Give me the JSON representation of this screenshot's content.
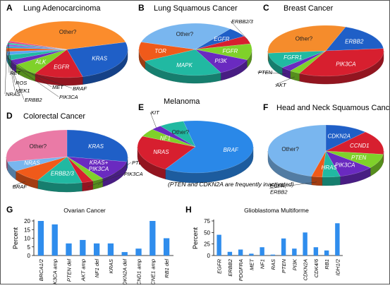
{
  "figure": {
    "panels": [
      {
        "letter": "A",
        "title": "Lung Adenocarcinoma",
        "slices": [
          {
            "label": "KRAS",
            "value": 25,
            "color": "#1f5fc7",
            "inside": true
          },
          {
            "label": "EGFR",
            "value": 13,
            "color": "#d71f2f",
            "inside": true
          },
          {
            "label": "ALK",
            "value": 7,
            "color": "#7fd12a",
            "inside": true
          },
          {
            "label": "BRAF",
            "value": 3,
            "color": "#6a2ac0",
            "inside": false
          },
          {
            "label": "PIK3CA",
            "value": 3,
            "color": "#21b9a2",
            "inside": false
          },
          {
            "label": "MET",
            "value": 2,
            "color": "#5aa5f0",
            "inside": false
          },
          {
            "label": "ERBB2",
            "value": 2,
            "color": "#f05a1a",
            "inside": false
          },
          {
            "label": "MEK1",
            "value": 1,
            "color": "#2aa8d6",
            "inside": false
          },
          {
            "label": "NRAS",
            "value": 1,
            "color": "#9a4dd8",
            "inside": false
          },
          {
            "label": "ROS",
            "value": 1,
            "color": "#35c4aa",
            "inside": false
          },
          {
            "label": "RET",
            "value": 1,
            "color": "#e0428c",
            "inside": false
          },
          {
            "label": "Other?",
            "value": 41,
            "color": "#fb8c2c",
            "inside": true
          }
        ]
      },
      {
        "letter": "B",
        "title": "Lung Squamous Cancer",
        "slices": [
          {
            "label": "EGFR",
            "value": 6,
            "color": "#1f5fc7",
            "inside": true
          },
          {
            "label": "ERBB2/3",
            "value": 5,
            "color": "#d71f2f",
            "inside": false
          },
          {
            "label": "FGFR",
            "value": 10,
            "color": "#7fd12a",
            "inside": true
          },
          {
            "label": "PI3K",
            "value": 11,
            "color": "#6a2ac0",
            "inside": true
          },
          {
            "label": "MAPK",
            "value": 25,
            "color": "#21b9a2",
            "inside": true
          },
          {
            "label": "TOR",
            "value": 12,
            "color": "#f05a1a",
            "inside": true
          },
          {
            "label": "Other?",
            "value": 31,
            "color": "#79b6ef",
            "inside": true
          }
        ]
      },
      {
        "letter": "C",
        "title": "Breast Cancer",
        "slices": [
          {
            "label": "ERBB2",
            "value": 18,
            "color": "#1f5fc7",
            "inside": true
          },
          {
            "label": "PIK3CA",
            "value": 34,
            "color": "#d71f2f",
            "inside": true
          },
          {
            "label": "AKT",
            "value": 3,
            "color": "#7fd12a",
            "inside": false
          },
          {
            "label": "PTEN",
            "value": 3,
            "color": "#6a2ac0",
            "inside": false
          },
          {
            "label": "FGFR1",
            "value": 10,
            "color": "#21b9a2",
            "inside": true
          },
          {
            "label": "Other?",
            "value": 32,
            "color": "#f58c2c",
            "inside": true
          }
        ]
      },
      {
        "letter": "D",
        "title": "Colorectal Cancer",
        "slices": [
          {
            "label": "KRAS",
            "value": 28,
            "color": "#1f5fc7",
            "inside": true
          },
          {
            "label": "KRAS+ PIK3CA",
            "value": 12,
            "color": "#6a2ac0",
            "inside": true
          },
          {
            "label": "PTEN",
            "value": 3,
            "color": "#7fd12a",
            "inside": false
          },
          {
            "label": "PIK3CA",
            "value": 3,
            "color": "#d71f2f",
            "inside": false
          },
          {
            "label": "ERBB2/3",
            "value": 12,
            "color": "#21b9a2",
            "inside": true
          },
          {
            "label": "BRAF",
            "value": 8,
            "color": "#f05a1a",
            "inside": false
          },
          {
            "label": "NRAS",
            "value": 6,
            "color": "#79b6ef",
            "inside": true
          },
          {
            "label": "Other?",
            "value": 28,
            "color": "#ea7aa6",
            "inside": true
          }
        ]
      },
      {
        "letter": "E",
        "title": "Melanoma",
        "slices": [
          {
            "label": "BRAF",
            "value": 62,
            "color": "#2a88e8",
            "inside": true
          },
          {
            "label": "NRAS",
            "value": 23,
            "color": "#d71f2f",
            "inside": true
          },
          {
            "label": "NF1",
            "value": 5,
            "color": "#7fd12a",
            "inside": true
          },
          {
            "label": "KIT",
            "value": 3,
            "color": "#6a2ac0",
            "inside": false
          },
          {
            "label": "Other?",
            "value": 7,
            "color": "#21b9a2",
            "inside": true
          }
        ],
        "note": "(PTEN and CDKN2A are frequently inactivated)"
      },
      {
        "letter": "F",
        "title": "Head and Neck Squamous Cancer",
        "slices": [
          {
            "label": "CDKN2A",
            "value": 12,
            "color": "#1f5fc7",
            "inside": true
          },
          {
            "label": "CCND1",
            "value": 15,
            "color": "#d71f2f",
            "inside": true
          },
          {
            "label": "PTEN",
            "value": 9,
            "color": "#7fd12a",
            "inside": true
          },
          {
            "label": "PIK3CA",
            "value": 10,
            "color": "#6a2ac0",
            "inside": true
          },
          {
            "label": "HRAS",
            "value": 5,
            "color": "#21b9a2",
            "inside": true
          },
          {
            "label": "EGFR, ERBB2",
            "value": 3,
            "color": "#f05a1a",
            "inside": false
          },
          {
            "label": "Other?",
            "value": 46,
            "color": "#79b6ef",
            "inside": true
          }
        ]
      }
    ]
  },
  "chart_data": [
    {
      "type": "bar",
      "letter": "G",
      "title": "Ovarian Cancer",
      "ylabel": "Percent",
      "ylim": [
        0,
        20
      ],
      "yticks": [
        0,
        5,
        10,
        15,
        20
      ],
      "grid": false,
      "color": "#2f8ded",
      "categories": [
        "BRCA1/2",
        "PIK3CA amp",
        "PTEN del",
        "AKT amp",
        "NF1 del",
        "KRAS",
        "CDKN2A del",
        "CCND1 amp",
        "CCNE1 amp",
        "RB1 del"
      ],
      "values": [
        20,
        18,
        7,
        9,
        7,
        7,
        2,
        4,
        20,
        10
      ]
    },
    {
      "type": "bar",
      "letter": "H",
      "title": "Glioblastoma Multiforme",
      "ylabel": "Percent",
      "ylim": [
        0,
        75
      ],
      "yticks": [
        0,
        25,
        50,
        75
      ],
      "grid": false,
      "color": "#2f8ded",
      "categories": [
        "EGFR",
        "ERBB2",
        "PDGFRA",
        "MET",
        "NF1",
        "RAS",
        "PTEN",
        "PI3K",
        "CDKN2A",
        "CDK4/6",
        "RB1",
        "IDH1/2"
      ],
      "values": [
        45,
        8,
        13,
        4,
        18,
        2,
        37,
        15,
        50,
        18,
        11,
        70
      ]
    }
  ]
}
